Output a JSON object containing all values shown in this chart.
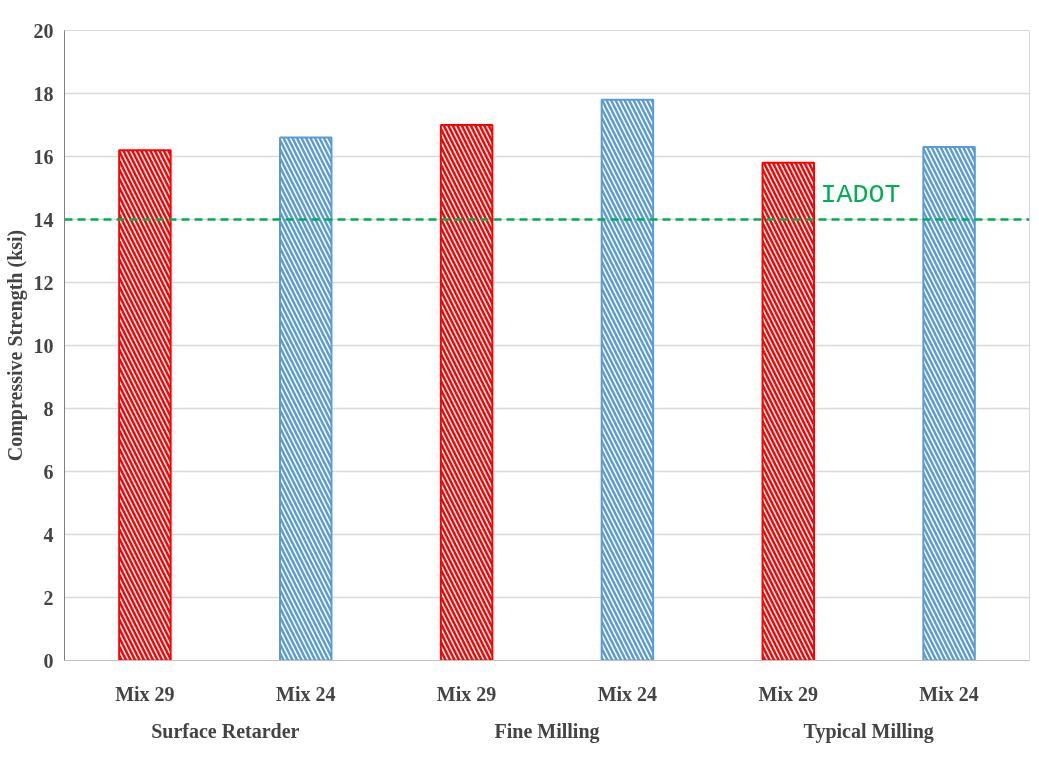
{
  "chart_data": {
    "type": "bar",
    "ylabel": "Compressive Strength (ksi)",
    "categories": [
      "Mix 29",
      "Mix 24",
      "Mix 29",
      "Mix 24",
      "Mix 29",
      "Mix 24"
    ],
    "values": [
      16.2,
      16.6,
      17.0,
      17.8,
      15.8,
      16.3
    ],
    "colors": [
      "#ff0000",
      "#5b9bd5",
      "#ff0000",
      "#5b9bd5",
      "#ff0000",
      "#5b9bd5"
    ],
    "annotations": [
      "Surface Retarder",
      "Fine Milling",
      "Typical Milling"
    ],
    "ylim": [
      0,
      20
    ],
    "yticks": [
      0,
      2,
      4,
      6,
      8,
      10,
      12,
      14,
      16,
      18,
      20
    ],
    "ref_lines": [
      {
        "axis": "y",
        "value": 14,
        "label": "IADOT",
        "color": "#00b050",
        "line_style": "dashed"
      }
    ],
    "grid": "y"
  }
}
